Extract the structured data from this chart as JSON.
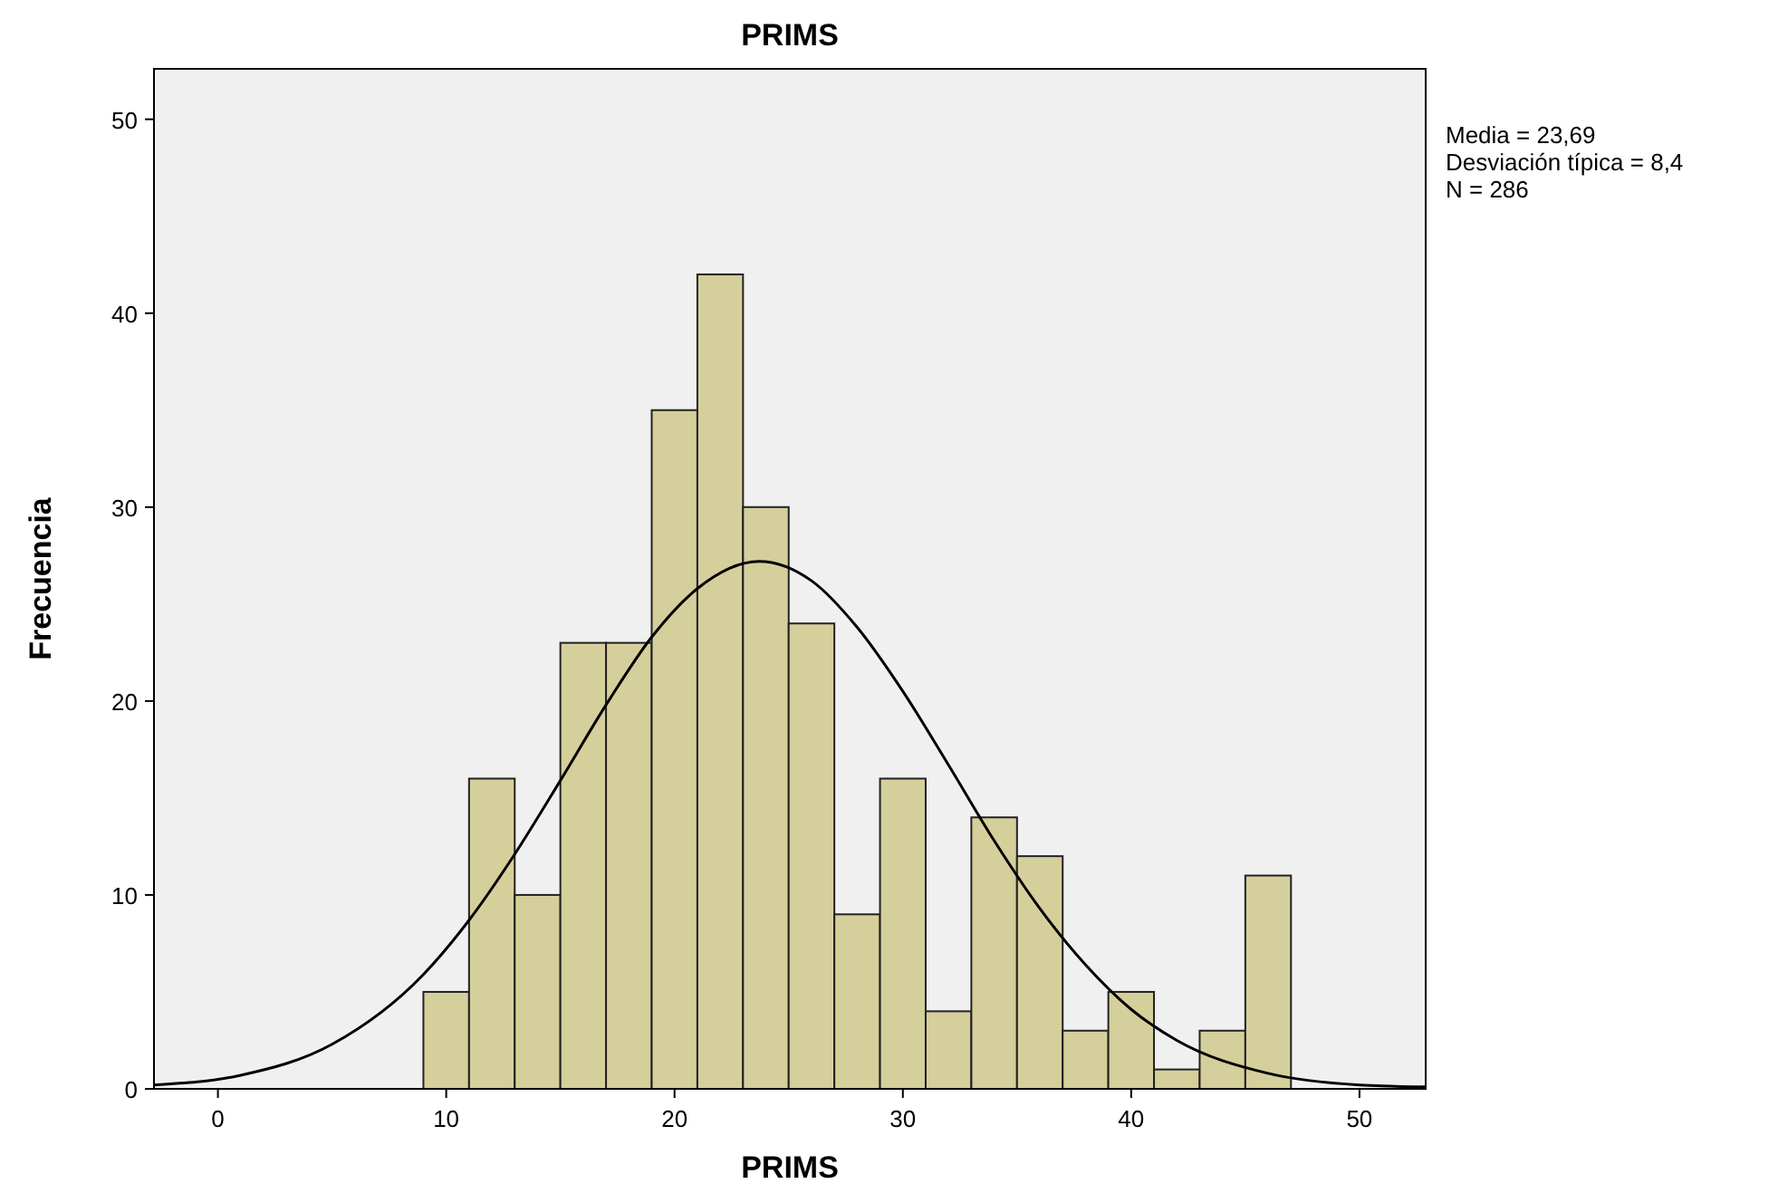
{
  "chart_data": {
    "type": "histogram",
    "title": "PRIMS",
    "xlabel": "PRIMS",
    "ylabel": "Frecuencia",
    "bins": [
      9,
      11,
      13,
      15,
      17,
      19,
      21,
      23,
      25,
      27,
      29,
      31,
      33,
      35,
      37,
      39,
      41,
      43,
      45,
      47
    ],
    "series": [
      {
        "color": "#d5cf9b",
        "values": [
          5,
          16,
          10,
          23,
          23,
          35,
          42,
          30,
          24,
          9,
          16,
          4,
          14,
          12,
          3,
          5,
          1,
          3,
          11
        ]
      },
      {
        "type": "line",
        "color": "#000000",
        "x": [
          -2.8,
          1,
          5,
          9,
          11,
          13,
          15,
          17,
          19,
          21,
          23.7,
          26,
          28,
          30,
          32,
          34,
          36,
          38,
          40,
          42,
          46,
          50,
          52.9
        ],
        "values": [
          0.2,
          0.7,
          2.3,
          5.9,
          8.7,
          12.1,
          15.9,
          19.8,
          23.3,
          25.8,
          27.2,
          26.2,
          23.8,
          20.5,
          16.7,
          12.8,
          9.3,
          6.4,
          4.1,
          2.5,
          0.8,
          0.2,
          0.1
        ]
      }
    ],
    "xlim": [
      -2.8,
      52.9
    ],
    "xticks": [
      0,
      10,
      20,
      30,
      40,
      50
    ],
    "ylim": [
      0,
      52.6
    ],
    "yticks": [
      0,
      10,
      20,
      30,
      40,
      50
    ],
    "grid": false,
    "annotations": [
      "Media = 23,69",
      "Desviación típica = 8,4",
      "N = 286"
    ]
  }
}
